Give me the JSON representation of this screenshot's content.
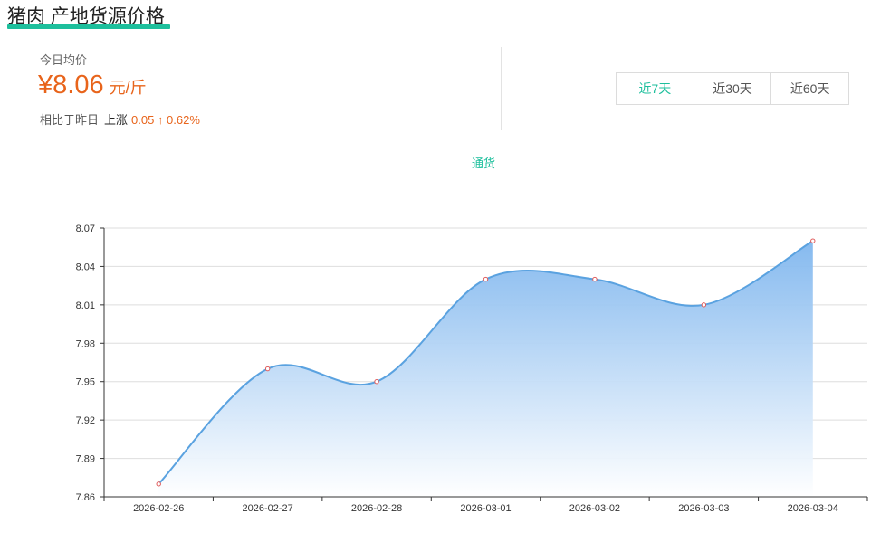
{
  "header": {
    "title": "猪肉 产地货源价格"
  },
  "summary": {
    "today_label": "今日均价",
    "price": "¥8.06",
    "unit": "元/斤",
    "compare_label": "相比于昨日",
    "direction": "上涨",
    "change": "0.05 ↑ 0.62%"
  },
  "range_tabs": [
    "近7天",
    "近30天",
    "近60天"
  ],
  "colors": {
    "accent": "#1dbf9c",
    "price": "#e8641b",
    "line": "#5aa2e0",
    "point_stroke": "#e05a5a"
  },
  "chart_data": {
    "type": "area",
    "title": "",
    "xlabel": "",
    "ylabel": "",
    "legend": [
      {
        "name": "通货",
        "position": "top-center"
      }
    ],
    "categories": [
      "2026-02-26",
      "2026-02-27",
      "2026-02-28",
      "2026-03-01",
      "2026-03-02",
      "2026-03-03",
      "2026-03-04"
    ],
    "series": [
      {
        "name": "通货",
        "values": [
          7.87,
          7.96,
          7.95,
          8.03,
          8.03,
          8.01,
          8.06
        ]
      }
    ],
    "ylim": [
      7.86,
      8.07
    ],
    "yticks": [
      "7.86",
      "7.89",
      "7.92",
      "7.95",
      "7.98",
      "8.01",
      "8.04",
      "8.07"
    ],
    "grid": true,
    "smooth": true
  }
}
